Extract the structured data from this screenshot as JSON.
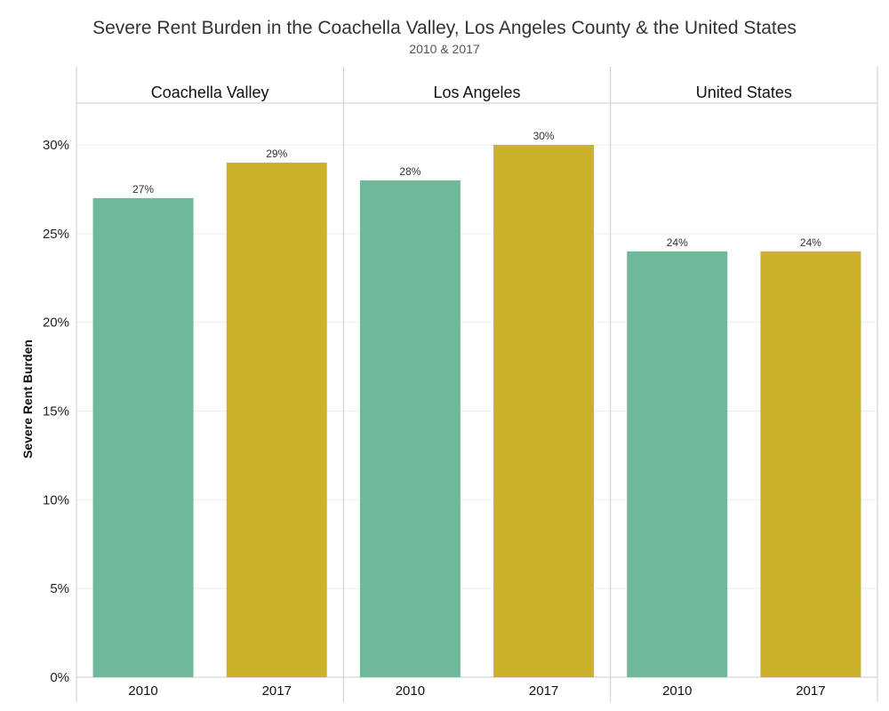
{
  "chart_data": {
    "type": "bar",
    "title": "Severe Rent Burden in the Coachella Valley, Los Angeles County & the United States",
    "subtitle": "2010 & 2017",
    "xlabel": "",
    "ylabel": "Severe Rent Burden",
    "ylim": [
      0,
      32
    ],
    "yticks": [
      0,
      5,
      10,
      15,
      20,
      25,
      30
    ],
    "ytick_labels": [
      "0%",
      "5%",
      "10%",
      "15%",
      "20%",
      "25%",
      "30%"
    ],
    "grid": true,
    "legend": "none",
    "panels": [
      {
        "name": "Coachella Valley",
        "categories": [
          "2010",
          "2017"
        ],
        "values": [
          27,
          29
        ],
        "labels": [
          "27%",
          "29%"
        ]
      },
      {
        "name": "Los Angeles",
        "categories": [
          "2010",
          "2017"
        ],
        "values": [
          28,
          30
        ],
        "labels": [
          "28%",
          "30%"
        ]
      },
      {
        "name": "United States",
        "categories": [
          "2010",
          "2017"
        ],
        "values": [
          24,
          24
        ],
        "labels": [
          "24%",
          "24%"
        ]
      }
    ],
    "colors": {
      "2010": "#6fb899",
      "2017": "#ccb22b"
    }
  }
}
